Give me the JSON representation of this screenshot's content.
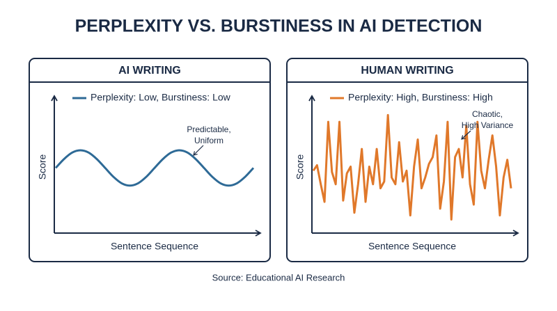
{
  "title": "PERPLEXITY VS. BURSTINESS IN AI DETECTION",
  "chart_data": [
    {
      "type": "line",
      "title": "AI WRITING",
      "x_label": "Sentence Sequence",
      "y_label": "Score",
      "annotation": [
        "Predictable,",
        "Uniform"
      ],
      "x": [
        0,
        1,
        2,
        3,
        4,
        5,
        6,
        7,
        8,
        9,
        10,
        11,
        12,
        13,
        14,
        15,
        16,
        17,
        18,
        19,
        20,
        21,
        22,
        23,
        24
      ],
      "xlim": [
        0,
        24
      ],
      "ylim": [
        0,
        100
      ],
      "series": [
        {
          "name": "Perplexity: Low, Burstiness: Low",
          "color": "#2e6a96",
          "values": [
            48,
            54.5,
            59.3,
            61,
            59.3,
            54.5,
            48,
            41.5,
            36.7,
            35,
            36.7,
            41.5,
            48,
            54.5,
            59.3,
            61,
            59.3,
            54.5,
            48,
            41.5,
            36.7,
            35,
            36.7,
            41.5,
            48
          ]
        }
      ]
    },
    {
      "type": "line",
      "title": "HUMAN WRITING",
      "x_label": "Sentence Sequence",
      "y_label": "Score",
      "annotation": [
        "Chaotic,",
        "High Variance"
      ],
      "x": [
        0,
        1,
        2,
        3,
        4,
        5,
        6,
        7,
        8,
        9,
        10,
        11,
        12,
        13,
        14,
        15,
        16,
        17,
        18,
        19,
        20,
        21,
        22,
        23,
        24,
        25,
        26,
        27,
        28,
        29,
        30,
        31,
        32,
        33,
        34,
        35,
        36,
        37,
        38,
        39,
        40,
        41,
        42,
        43,
        44,
        45,
        46,
        47,
        48,
        49,
        50,
        51,
        52,
        53
      ],
      "xlim": [
        0,
        53
      ],
      "ylim": [
        0,
        100
      ],
      "series": [
        {
          "name": "Perplexity: High, Burstiness: High",
          "color": "#e0782a",
          "values": [
            46,
            50,
            36,
            23,
            82,
            45,
            36,
            82,
            24,
            44,
            49,
            15,
            36,
            62,
            23,
            49,
            36,
            62,
            33,
            38,
            87,
            41,
            36,
            67,
            38,
            46,
            13,
            49,
            69,
            33,
            41,
            51,
            56,
            72,
            18,
            38,
            82,
            10,
            56,
            62,
            41,
            79,
            36,
            21,
            82,
            46,
            33,
            54,
            72,
            49,
            13,
            41,
            54,
            33
          ]
        }
      ]
    }
  ],
  "source": "Source: Educational AI Research"
}
